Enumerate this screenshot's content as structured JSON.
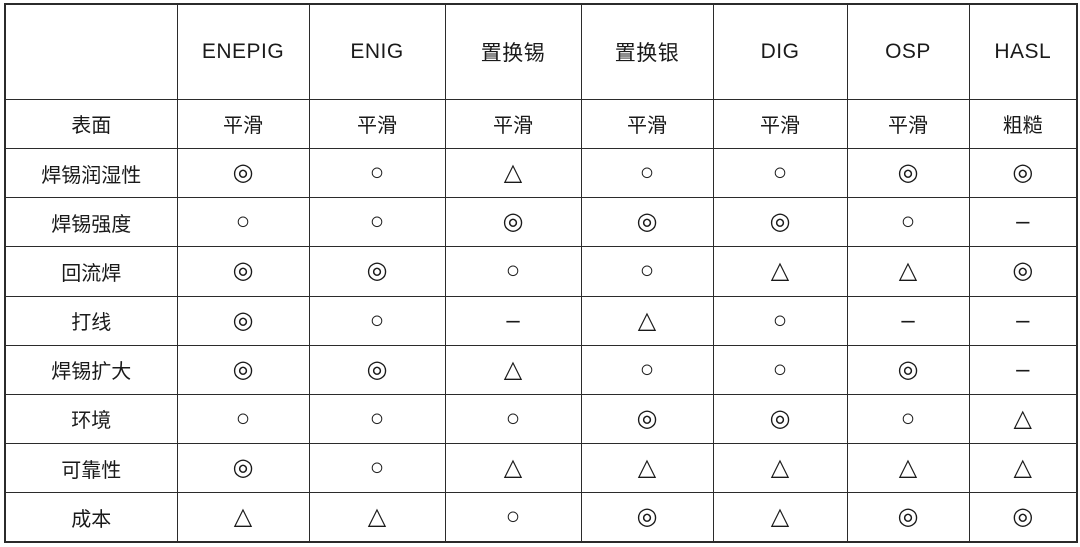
{
  "table": {
    "columns": [
      "",
      "ENEPIG",
      "ENIG",
      "置换锡",
      "置换银",
      "DIG",
      "OSP",
      "HASL"
    ],
    "rows": [
      {
        "label": "表面",
        "cells": [
          "平滑",
          "平滑",
          "平滑",
          "平滑",
          "平滑",
          "平滑",
          "粗糙"
        ]
      },
      {
        "label": "焊锡润湿性",
        "cells": [
          "◎",
          "○",
          "△",
          "○",
          "○",
          "◎",
          "◎"
        ]
      },
      {
        "label": "焊锡强度",
        "cells": [
          "○",
          "○",
          "◎",
          "◎",
          "◎",
          "○",
          "–"
        ]
      },
      {
        "label": "回流焊",
        "cells": [
          "◎",
          "◎",
          "○",
          "○",
          "△",
          "△",
          "◎"
        ]
      },
      {
        "label": "打线",
        "cells": [
          "◎",
          "○",
          "–",
          "△",
          "○",
          "–",
          "–"
        ]
      },
      {
        "label": "焊锡扩大",
        "cells": [
          "◎",
          "◎",
          "△",
          "○",
          "○",
          "◎",
          "–"
        ]
      },
      {
        "label": "环境",
        "cells": [
          "○",
          "○",
          "○",
          "◎",
          "◎",
          "○",
          "△"
        ]
      },
      {
        "label": "可靠性",
        "cells": [
          "◎",
          "○",
          "△",
          "△",
          "△",
          "△",
          "△"
        ]
      },
      {
        "label": "成本",
        "cells": [
          "△",
          "△",
          "○",
          "◎",
          "△",
          "◎",
          "◎"
        ]
      }
    ],
    "symbols": {
      "excellent": "◎",
      "good": "○",
      "fair": "△",
      "not_applicable": "–"
    }
  },
  "colors": {
    "border": "#2b2b2b",
    "text": "#1a1a1a",
    "background": "#ffffff"
  }
}
